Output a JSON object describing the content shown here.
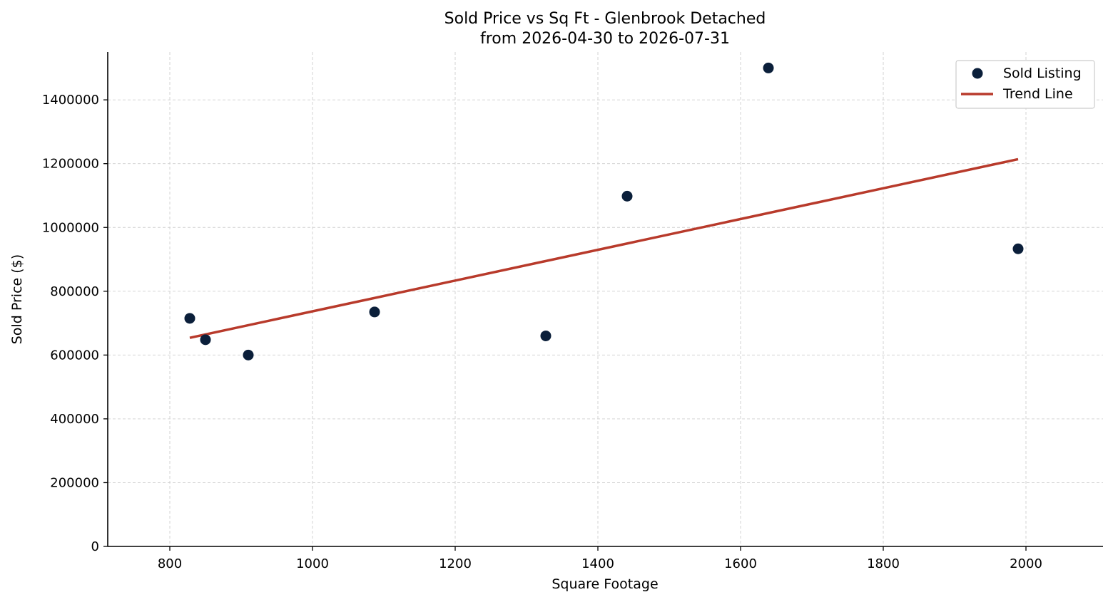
{
  "chart_data": {
    "type": "scatter",
    "title": "Sold Price vs Sq Ft - Glenbrook Detached",
    "subtitle": "from 2026-04-30 to 2026-07-31",
    "xlabel": "Square Footage",
    "ylabel": "Sold Price ($)",
    "xlim": [
      713,
      2108
    ],
    "ylim": [
      0,
      1550000
    ],
    "xticks": [
      800,
      1000,
      1200,
      1400,
      1600,
      1800,
      2000
    ],
    "yticks": [
      0,
      200000,
      400000,
      600000,
      800000,
      1000000,
      1200000,
      1400000
    ],
    "xtick_labels": [
      "800",
      "1000",
      "1200",
      "1400",
      "1600",
      "1800",
      "2000"
    ],
    "ytick_labels": [
      "0",
      "200000",
      "400000",
      "600000",
      "800000",
      "1000000",
      "1200000",
      "1400000"
    ],
    "grid": true,
    "legend_position": "top-right",
    "series": [
      {
        "name": "Sold Listing",
        "kind": "scatter",
        "color": "#0b1f3a",
        "x": [
          828,
          850,
          910,
          1087,
          1327,
          1441,
          1639,
          1989
        ],
        "y": [
          715000,
          648000,
          600000,
          735000,
          660000,
          1098000,
          1500000,
          933000
        ]
      },
      {
        "name": "Trend Line",
        "kind": "line",
        "color": "#b83a2b",
        "x": [
          828,
          1989
        ],
        "y": [
          654000,
          1214000
        ]
      }
    ]
  }
}
